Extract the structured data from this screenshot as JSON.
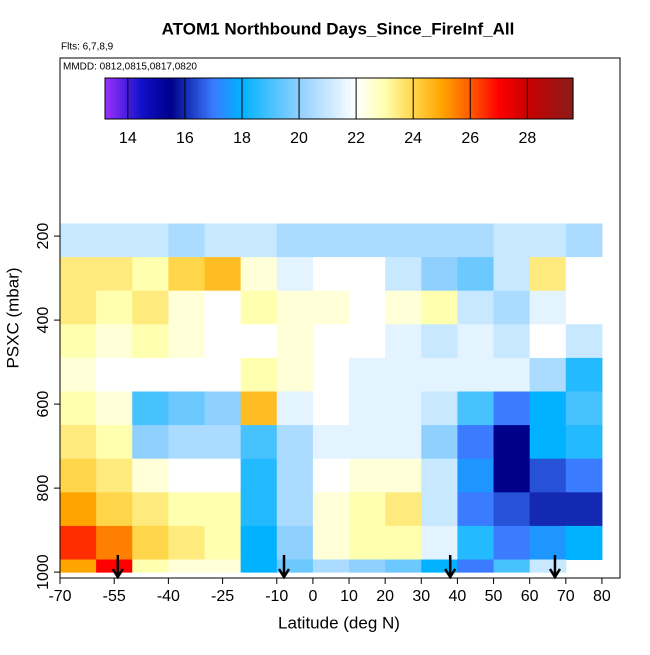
{
  "chart_data": {
    "type": "heatmap",
    "title": "ATOM1 Northbound Days_Since_FireInf_All",
    "subtitle": "Flts: 6,7,8,9",
    "annotation": "MMDD: 0812,0815,0817,0820",
    "xlabel": "Latitude (deg N)",
    "ylabel": "PSXC (mbar)",
    "xlim": [
      -70,
      85
    ],
    "ylim": [
      1014,
      -224
    ],
    "xticks": [
      -70,
      -55,
      -40,
      -25,
      -10,
      0,
      10,
      20,
      30,
      40,
      50,
      60,
      70,
      80
    ],
    "yticks": [
      200,
      400,
      600,
      800,
      1000
    ],
    "x_edges": [
      -70,
      -60,
      -50,
      -40,
      -30,
      -20,
      -10,
      0,
      10,
      20,
      30,
      40,
      50,
      60,
      70,
      80
    ],
    "y_edges": [
      170,
      250,
      330,
      410,
      490,
      570,
      650,
      730,
      810,
      890,
      970,
      1000
    ],
    "z": [
      [
        21,
        21,
        21,
        20.5,
        21,
        21,
        20.5,
        20.5,
        20.5,
        20.5,
        20.5,
        20.5,
        21,
        21,
        20.5
      ],
      [
        23.5,
        23.5,
        23,
        24,
        24.5,
        22.5,
        21.5,
        22,
        22,
        21,
        20,
        19.5,
        21,
        23.5,
        22
      ],
      [
        23.5,
        23,
        23.5,
        22.5,
        22,
        23,
        22.5,
        22.5,
        22,
        22.5,
        23,
        21,
        20.5,
        21.5,
        22
      ],
      [
        23,
        22.5,
        23,
        22.5,
        22,
        22,
        22.5,
        22,
        22,
        21.5,
        21,
        21.5,
        21,
        22,
        21
      ],
      [
        22.5,
        22,
        22,
        22,
        22,
        23,
        22.5,
        22,
        21.5,
        21.5,
        21.5,
        21.5,
        21.5,
        20.5,
        18.5
      ],
      [
        23,
        22.5,
        19,
        19.5,
        20,
        24.5,
        21.5,
        22,
        21.5,
        21.5,
        21,
        19,
        17,
        18,
        19
      ],
      [
        23.5,
        23,
        20,
        20.5,
        20.5,
        19,
        20.5,
        21.5,
        21.5,
        21.5,
        20,
        17,
        15.5,
        18,
        18.5
      ],
      [
        24,
        23.5,
        22.5,
        22,
        22,
        18.5,
        20.5,
        22,
        22.5,
        22.5,
        21,
        17.5,
        15.5,
        16.5,
        17
      ],
      [
        25,
        24,
        23.5,
        23,
        23,
        18.5,
        20.5,
        22.5,
        23,
        23.5,
        21,
        17,
        16.5,
        16,
        16
      ],
      [
        26.5,
        25.5,
        24,
        23.5,
        23,
        18,
        20,
        22.5,
        23,
        23,
        21.5,
        18.5,
        17,
        17.5,
        18
      ],
      [
        25,
        27,
        23,
        22.5,
        22.5,
        18,
        19.5,
        20.5,
        20,
        19.5,
        18,
        17,
        19,
        21,
        null
      ]
    ],
    "arrows": [
      -54,
      -8,
      38,
      67
    ],
    "colorbar": {
      "lim": [
        13.2,
        29.6
      ],
      "ticks": [
        14,
        16,
        18,
        20,
        22,
        24,
        26,
        28
      ]
    },
    "colorscale": [
      [
        13.2,
        "#9b30ff"
      ],
      [
        14.5,
        "#1010c8"
      ],
      [
        15.5,
        "#00008b"
      ],
      [
        17,
        "#3a7bff"
      ],
      [
        18,
        "#00b2ff"
      ],
      [
        20,
        "#8fd0ff"
      ],
      [
        22,
        "#ffffff"
      ],
      [
        23,
        "#ffffb0"
      ],
      [
        24,
        "#ffd54a"
      ],
      [
        25,
        "#ffa500"
      ],
      [
        26,
        "#ff5a00"
      ],
      [
        27,
        "#ff0000"
      ],
      [
        28,
        "#c80000"
      ],
      [
        29.6,
        "#8b1a1a"
      ]
    ]
  }
}
